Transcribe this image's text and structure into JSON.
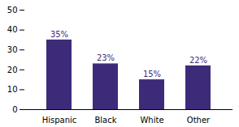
{
  "chart_data": {
    "type": "bar",
    "categories": [
      "Hispanic",
      "Black",
      "White",
      "Other"
    ],
    "values": [
      35,
      23,
      15,
      22
    ],
    "value_labels": [
      "35%",
      "23%",
      "15%",
      "22%"
    ],
    "data_labels": true,
    "color": "#3d2b7a",
    "ylim": [
      0,
      50
    ],
    "yticks": [
      0,
      10,
      20,
      30,
      40,
      50
    ],
    "grid": false
  }
}
